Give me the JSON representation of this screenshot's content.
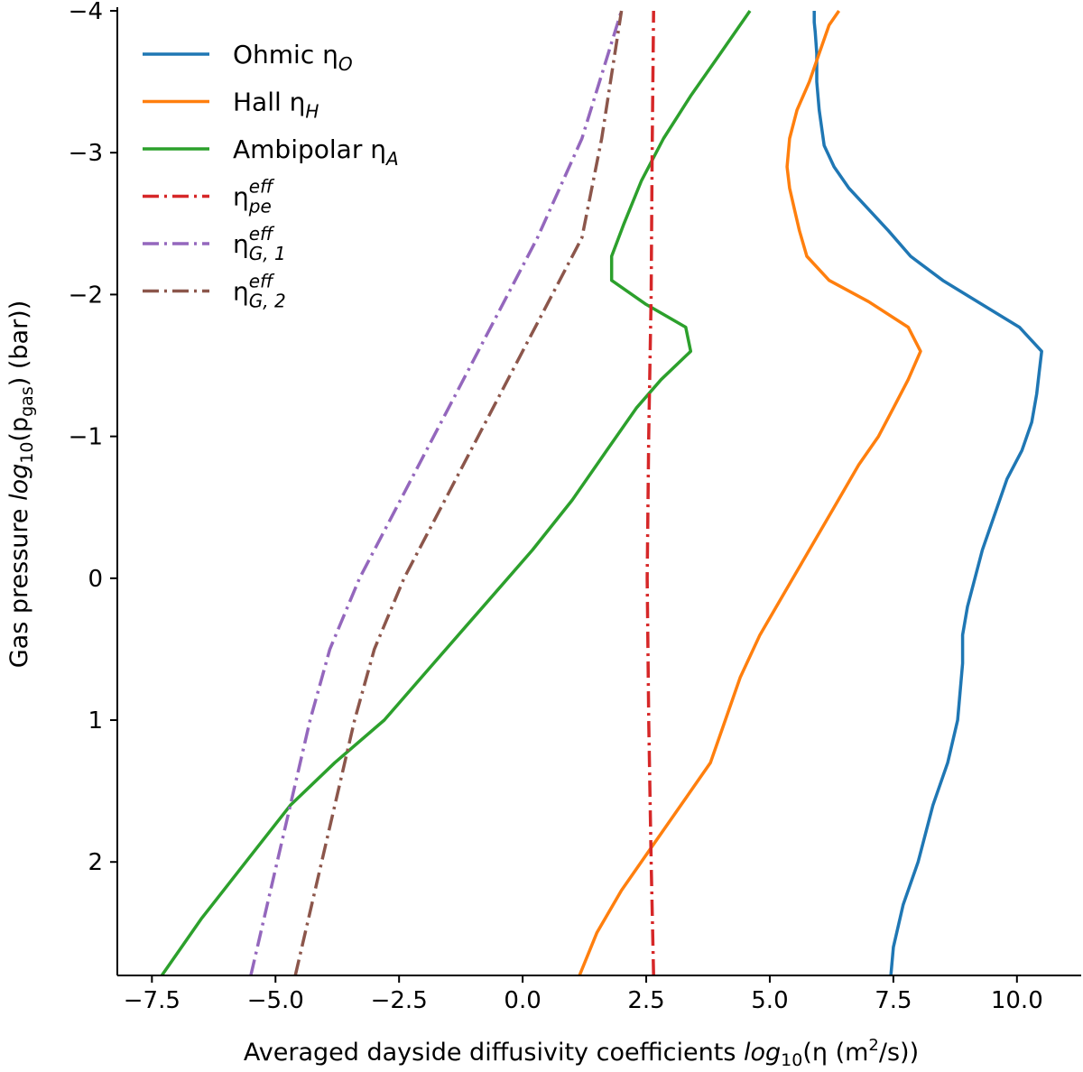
{
  "chart_data": {
    "type": "line",
    "xlabel_main": "Averaged dayside diffusivity coefficients ",
    "xlabel_math": "log",
    "xlabel_sub": "10",
    "xlabel_paren": "(η (m",
    "xlabel_sup": "2",
    "xlabel_end": "/s))",
    "ylabel_main": "Gas pressure ",
    "ylabel_math": "log",
    "ylabel_sub": "10",
    "ylabel_p": "(p",
    "ylabel_psub": "gas",
    "ylabel_end": ") (bar))",
    "xlim": [
      -8.2,
      11.3
    ],
    "ylim": [
      -4,
      2.8
    ],
    "y_inverted": true,
    "xticks": [
      -7.5,
      -5.0,
      -2.5,
      0.0,
      2.5,
      5.0,
      7.5,
      10.0
    ],
    "xtick_labels": [
      "−7.5",
      "−5.0",
      "−2.5",
      "0.0",
      "2.5",
      "5.0",
      "7.5",
      "10.0"
    ],
    "yticks": [
      -4,
      -3,
      -2,
      -1,
      0,
      1,
      2
    ],
    "ytick_labels": [
      "−4",
      "−3",
      "−2",
      "−1",
      "0",
      "1",
      "2"
    ],
    "series": [
      {
        "name": "Ohmic ηO",
        "label_base": "Ohmic η",
        "label_sub": "O",
        "label_sup": "",
        "color": "#1f77b4",
        "style": "solid",
        "x": [
          7.45,
          7.5,
          7.7,
          8.0,
          8.3,
          8.6,
          8.8,
          8.9,
          8.9,
          9.0,
          9.3,
          9.8,
          10.1,
          10.3,
          10.4,
          10.45,
          10.5,
          10.05,
          9.2,
          8.5,
          7.85,
          7.4,
          7.0,
          6.6,
          6.3,
          6.1,
          6.0,
          5.95,
          5.95,
          5.92,
          5.9,
          5.9
        ],
        "y": [
          2.8,
          2.6,
          2.3,
          2.0,
          1.6,
          1.3,
          1.0,
          0.6,
          0.4,
          0.2,
          -0.2,
          -0.7,
          -0.9,
          -1.1,
          -1.3,
          -1.45,
          -1.6,
          -1.77,
          -1.95,
          -2.1,
          -2.27,
          -2.45,
          -2.6,
          -2.75,
          -2.9,
          -3.05,
          -3.3,
          -3.5,
          -3.7,
          -3.85,
          -3.92,
          -4.0
        ]
      },
      {
        "name": "Hall ηH",
        "label_base": "Hall η",
        "label_sub": "H",
        "label_sup": "",
        "color": "#ff7f0e",
        "style": "solid",
        "x": [
          1.15,
          1.5,
          2.0,
          2.6,
          3.2,
          3.8,
          4.1,
          4.4,
          4.8,
          5.3,
          5.8,
          6.3,
          6.8,
          7.2,
          7.5,
          7.8,
          8.05,
          7.8,
          7.0,
          6.2,
          5.75,
          5.6,
          5.5,
          5.4,
          5.35,
          5.4,
          5.55,
          5.8,
          6.0,
          6.2,
          6.4
        ],
        "y": [
          2.8,
          2.5,
          2.2,
          1.9,
          1.6,
          1.3,
          1.0,
          0.7,
          0.4,
          0.1,
          -0.2,
          -0.5,
          -0.8,
          -1.0,
          -1.2,
          -1.4,
          -1.6,
          -1.77,
          -1.95,
          -2.1,
          -2.27,
          -2.45,
          -2.6,
          -2.75,
          -2.9,
          -3.1,
          -3.3,
          -3.5,
          -3.7,
          -3.9,
          -4.0
        ]
      },
      {
        "name": "Ambipolar ηA",
        "label_base": "Ambipolar η",
        "label_sub": "A",
        "label_sup": "",
        "color": "#2ca02c",
        "style": "solid",
        "x": [
          -7.3,
          -6.5,
          -5.6,
          -4.7,
          -3.8,
          -2.8,
          -1.8,
          -0.8,
          0.2,
          1.0,
          1.7,
          2.3,
          2.8,
          3.4,
          3.3,
          2.5,
          1.8,
          1.8,
          2.05,
          2.4,
          2.85,
          3.4,
          4.0,
          4.6
        ],
        "y": [
          2.8,
          2.4,
          2.0,
          1.6,
          1.3,
          1.0,
          0.6,
          0.2,
          -0.2,
          -0.55,
          -0.9,
          -1.2,
          -1.4,
          -1.6,
          -1.77,
          -1.93,
          -2.1,
          -2.27,
          -2.5,
          -2.8,
          -3.1,
          -3.4,
          -3.7,
          -4.0
        ]
      },
      {
        "name": "ηpe eff",
        "label_base": "η",
        "label_sub": "pe",
        "label_sup": "eff",
        "color": "#d62728",
        "style": "dashdot",
        "x": [
          2.65,
          2.6,
          2.55,
          2.52,
          2.55,
          2.6,
          2.62,
          2.65
        ],
        "y": [
          2.8,
          2.0,
          1.0,
          0.0,
          -1.0,
          -2.0,
          -3.0,
          -4.0
        ]
      },
      {
        "name": "ηG,1 eff",
        "label_base": "η",
        "label_sub": "G, 1",
        "label_sup": "eff",
        "color": "#9467bd",
        "style": "dashdot",
        "x": [
          -5.5,
          -5.1,
          -4.7,
          -4.3,
          -3.9,
          -3.3,
          -2.4,
          -1.5,
          -0.6,
          0.3,
          1.2,
          2.0
        ],
        "y": [
          2.8,
          2.2,
          1.6,
          1.0,
          0.5,
          0.0,
          -0.6,
          -1.2,
          -1.8,
          -2.4,
          -3.1,
          -4.0
        ]
      },
      {
        "name": "ηG,2 eff",
        "label_base": "η",
        "label_sub": "G, 2",
        "label_sup": "eff",
        "color": "#8c564b",
        "style": "dashdot",
        "x": [
          -4.6,
          -4.2,
          -3.8,
          -3.4,
          -3.0,
          -2.4,
          -1.5,
          -0.6,
          0.3,
          1.2,
          1.6,
          2.0
        ],
        "y": [
          2.8,
          2.2,
          1.6,
          1.0,
          0.5,
          0.0,
          -0.6,
          -1.2,
          -1.8,
          -2.4,
          -3.1,
          -4.0
        ]
      }
    ],
    "legend_position": "top-left",
    "grid": false
  }
}
